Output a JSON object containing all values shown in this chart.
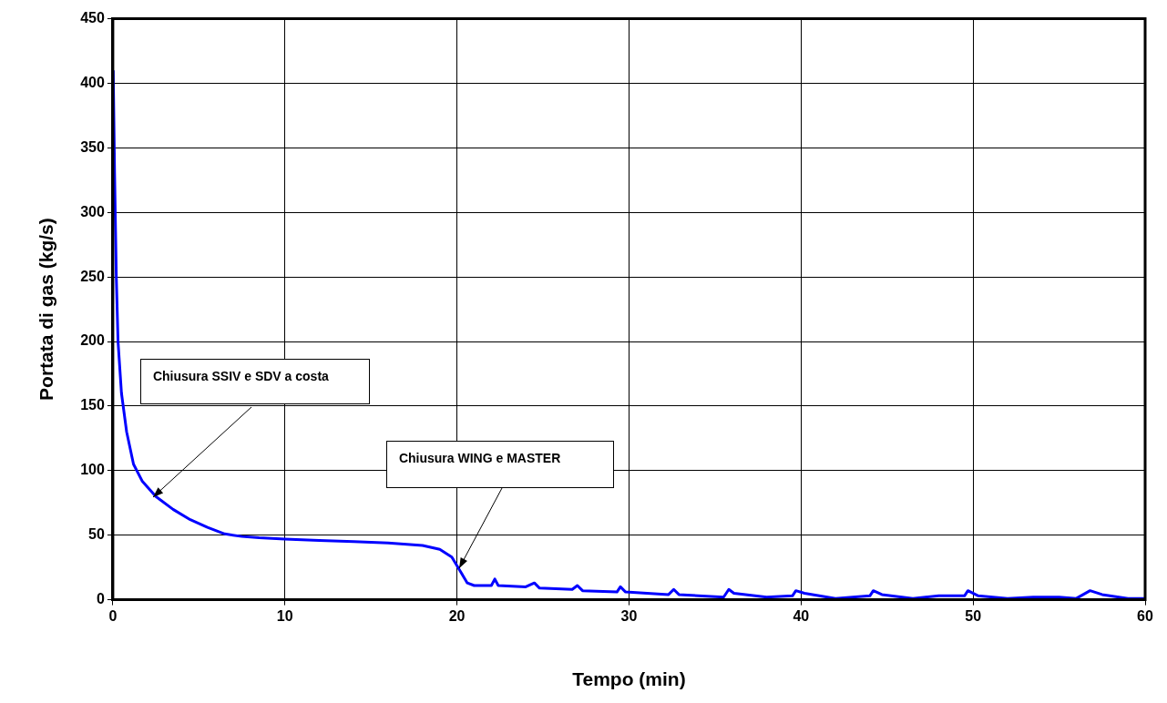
{
  "chart_data": {
    "type": "line",
    "xlabel": "Tempo (min)",
    "ylabel": "Portata di gas (kg/s)",
    "xlim": [
      0,
      60
    ],
    "xticks": [
      0,
      10,
      20,
      30,
      40,
      50,
      60
    ],
    "ylim": [
      0,
      450
    ],
    "yticks": [
      0,
      50,
      100,
      150,
      200,
      250,
      300,
      350,
      400,
      450
    ],
    "grid": true,
    "legend": false,
    "marker": "none",
    "line_style": "solid",
    "series": [
      {
        "color": "#0000ff",
        "x": [
          0.02,
          0.1,
          0.2,
          0.3,
          0.5,
          0.8,
          1.2,
          1.7,
          2.5,
          3.5,
          4.5,
          5.5,
          6.5,
          7.5,
          8.5,
          10,
          12,
          14,
          16,
          18,
          19,
          19.7,
          20.2,
          20.6,
          21,
          22,
          22.2,
          22.4,
          24,
          24.5,
          24.8,
          26.7,
          27,
          27.3,
          29.3,
          29.5,
          29.8,
          32.3,
          32.6,
          32.9,
          35.5,
          35.8,
          36.1,
          38,
          39.5,
          39.7,
          40.2,
          42,
          44,
          44.2,
          44.7,
          46.5,
          48,
          49.5,
          49.7,
          50.3,
          52,
          53.5,
          55,
          56,
          56.8,
          57.5,
          59,
          60
        ],
        "values": [
          410,
          330,
          250,
          200,
          160,
          130,
          105,
          92,
          80,
          70,
          62,
          56,
          51,
          49,
          48,
          47,
          46,
          45,
          44,
          42,
          39,
          33,
          22,
          13,
          11,
          11,
          16,
          11,
          10,
          13,
          9,
          8,
          11,
          7,
          6,
          10,
          6,
          4,
          8,
          4,
          2,
          8,
          5,
          2,
          3,
          7,
          5,
          1,
          3,
          7,
          4,
          1,
          3,
          3,
          7,
          3,
          1,
          2,
          2,
          1,
          7,
          4,
          1,
          1
        ]
      }
    ],
    "annotations": [
      "Chiusura SSIV e SDV a costa",
      "Chiusura WING e MASTER"
    ]
  }
}
